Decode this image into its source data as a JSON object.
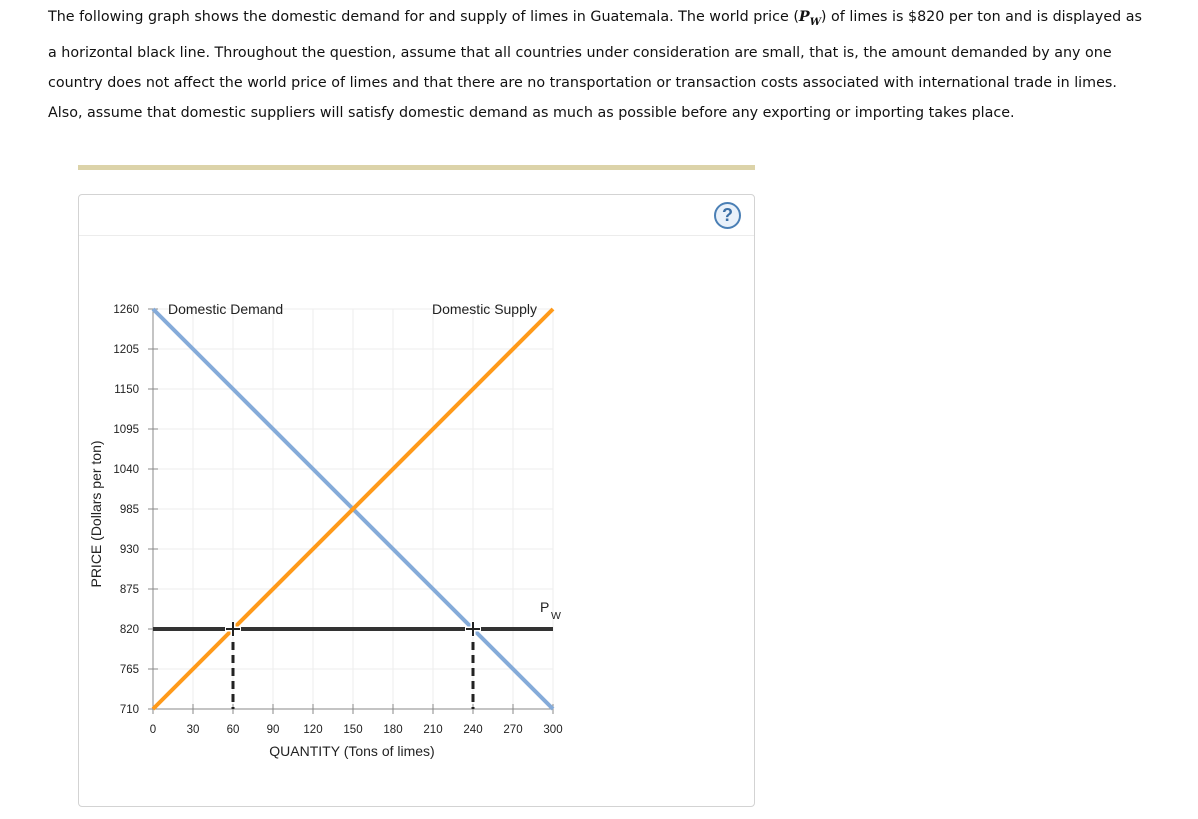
{
  "question": {
    "lines": [
      {
        "before": "The following graph shows the domestic demand for and supply of limes in Guatemala. The world price (",
        "pw_main": "P",
        "pw_sub": "W",
        "after": ") of limes is $820 per ton and is displayed as"
      },
      {
        "text": "a horizontal black line. Throughout the question, assume that all countries under consideration are small, that is, the amount demanded by any one"
      },
      {
        "text": "country does not affect the world price of limes and that there are no transportation or transaction costs associated with international trade in limes."
      },
      {
        "text": "Also, assume that domestic suppliers will satisfy domestic demand as much as possible before any exporting or importing takes place."
      }
    ]
  },
  "help_button": {
    "label": "?"
  },
  "chart_data": {
    "type": "line",
    "xlabel": "QUANTITY (Tons of limes)",
    "ylabel": "PRICE (Dollars per ton)",
    "xlim": [
      0,
      300
    ],
    "ylim": [
      710,
      1260
    ],
    "x_ticks": [
      0,
      30,
      60,
      90,
      120,
      150,
      180,
      210,
      240,
      270,
      300
    ],
    "y_ticks": [
      710,
      765,
      820,
      875,
      930,
      985,
      1040,
      1095,
      1150,
      1205,
      1260
    ],
    "grid": true,
    "series": [
      {
        "name": "Domestic Demand",
        "color": "#85abd9",
        "points": [
          [
            0,
            1260
          ],
          [
            300,
            710
          ]
        ]
      },
      {
        "name": "Domestic Supply",
        "color": "#ff9a1a",
        "points": [
          [
            0,
            710
          ],
          [
            300,
            1260
          ]
        ]
      },
      {
        "name": "PW",
        "color": "#333333",
        "points": [
          [
            0,
            820
          ],
          [
            300,
            820
          ]
        ]
      }
    ],
    "world_price": 820,
    "quantity_supplied_at_pw": 60,
    "quantity_demanded_at_pw": 240,
    "series_label_main": "P",
    "series_label_sub": "W"
  }
}
